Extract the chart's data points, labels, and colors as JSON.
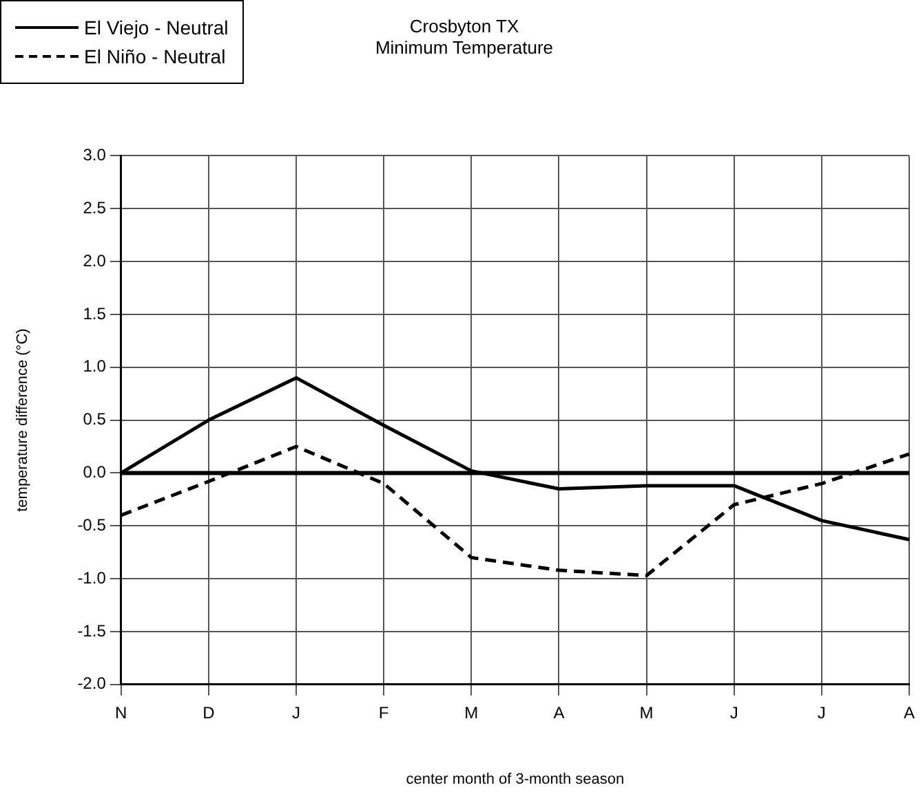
{
  "chart_data": {
    "type": "line",
    "title": "Crosbyton TX",
    "subtitle": "Minimum Temperature",
    "xlabel": "center month of 3-month season",
    "ylabel": "temperature difference (°C)",
    "categories": [
      "N",
      "D",
      "J",
      "F",
      "M",
      "A",
      "M",
      "J",
      "J",
      "A"
    ],
    "series": [
      {
        "name": "El Viejo - Neutral",
        "color": "#000000",
        "line_style": "solid",
        "values": [
          0,
          0.5,
          0.9,
          0.45,
          0.02,
          -0.15,
          -0.12,
          -0.12,
          -0.45,
          -0.63
        ]
      },
      {
        "name": "El Niño - Neutral",
        "color": "#000000",
        "line_style": "dashed",
        "values": [
          -0.4,
          -0.08,
          0.25,
          -0.1,
          -0.8,
          -0.92,
          -0.97,
          -0.3,
          -0.1,
          0.18
        ]
      }
    ],
    "ylim": [
      -2,
      3
    ],
    "yticks": [
      {
        "value": 3,
        "label": "3.0"
      },
      {
        "value": 2.5,
        "label": "2.5"
      },
      {
        "value": 2,
        "label": "2.0"
      },
      {
        "value": 1.5,
        "label": "1.5"
      },
      {
        "value": 1,
        "label": "1.0"
      },
      {
        "value": 0.5,
        "label": "0.5"
      },
      {
        "value": 0,
        "label": "0.0"
      },
      {
        "value": -0.5,
        "label": "-0.5"
      },
      {
        "value": -1,
        "label": "-1.0"
      },
      {
        "value": -1.5,
        "label": "-1.5"
      },
      {
        "value": -2,
        "label": "-2.0"
      }
    ],
    "ref_lines": [
      {
        "axis": "y",
        "value": 0,
        "color": "#000000"
      }
    ],
    "grid": true,
    "legend": "top left",
    "marker": "none"
  }
}
